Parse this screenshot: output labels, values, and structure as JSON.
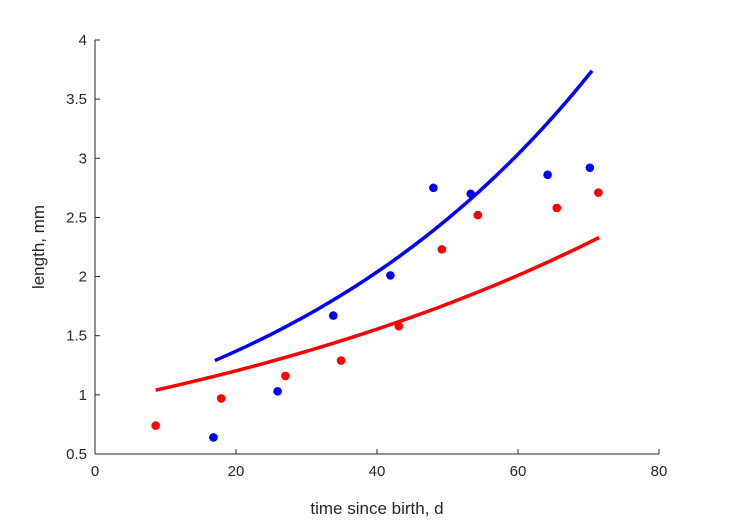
{
  "chart_data": {
    "type": "scatter",
    "title": "",
    "xlabel": "time since birth, d",
    "ylabel": "length, mm",
    "xlim": [
      0,
      80
    ],
    "ylim": [
      0.5,
      4
    ],
    "xticks": [
      0,
      20,
      40,
      60,
      80
    ],
    "yticks": [
      0.5,
      1,
      1.5,
      2,
      2.5,
      3,
      3.5,
      4
    ],
    "xtick_labels": [
      "0",
      "20",
      "40",
      "60",
      "80"
    ],
    "ytick_labels": [
      "0.5",
      "1",
      "1.5",
      "2",
      "2.5",
      "3",
      "3.5",
      "4"
    ],
    "grid": false,
    "series": [
      {
        "color": "#0000ff",
        "points": [
          {
            "x": 16.8,
            "y": 0.64
          },
          {
            "x": 25.9,
            "y": 1.03
          },
          {
            "x": 33.8,
            "y": 1.67
          },
          {
            "x": 41.9,
            "y": 2.01
          },
          {
            "x": 48.0,
            "y": 2.75
          },
          {
            "x": 53.3,
            "y": 2.7
          },
          {
            "x": 64.2,
            "y": 2.86
          },
          {
            "x": 70.2,
            "y": 2.92
          }
        ],
        "curve": {
          "x_start": 17,
          "x_end": 70.5,
          "y_start": 1.29,
          "y_end": 3.74
        }
      },
      {
        "color": "#ff0000",
        "points": [
          {
            "x": 8.6,
            "y": 0.74
          },
          {
            "x": 17.9,
            "y": 0.97
          },
          {
            "x": 27.0,
            "y": 1.16
          },
          {
            "x": 34.9,
            "y": 1.29
          },
          {
            "x": 43.1,
            "y": 1.58
          },
          {
            "x": 49.2,
            "y": 2.23
          },
          {
            "x": 54.3,
            "y": 2.52
          },
          {
            "x": 65.5,
            "y": 2.58
          },
          {
            "x": 71.4,
            "y": 2.71
          }
        ],
        "curve": {
          "x_start": 8.6,
          "x_end": 71.5,
          "y_start": 1.04,
          "y_end": 2.33
        }
      }
    ]
  }
}
